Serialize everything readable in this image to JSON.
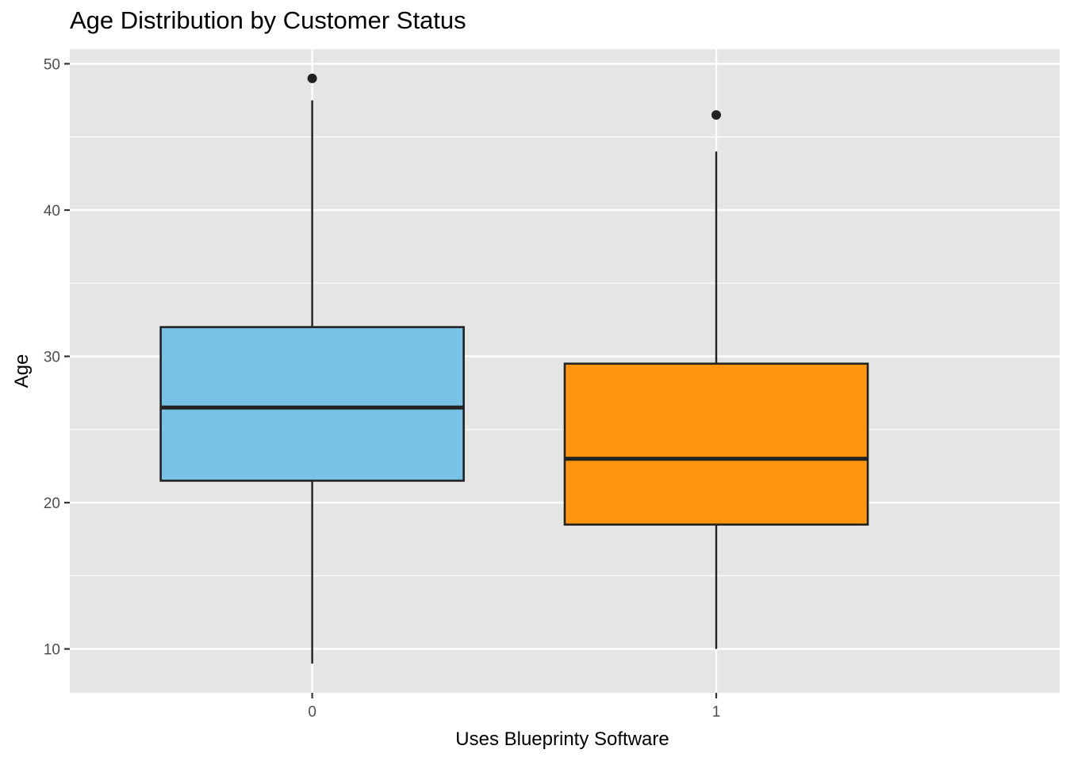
{
  "chart_data": {
    "type": "boxplot",
    "title": "Age Distribution by Customer Status",
    "xlabel": "Uses Blueprinty Software",
    "ylabel": "Age",
    "categories": [
      "0",
      "1"
    ],
    "ylim": [
      7,
      51
    ],
    "yticks": [
      10,
      20,
      30,
      40,
      50
    ],
    "grid": true,
    "legend": "none",
    "boxes": [
      {
        "category": "0",
        "whisker_low": 9,
        "q1": 21.5,
        "median": 26.5,
        "q3": 32,
        "whisker_high": 47.5,
        "outliers": [
          49
        ],
        "fill": "#77c2e5"
      },
      {
        "category": "1",
        "whisker_low": 10,
        "q1": 18.5,
        "median": 23,
        "q3": 29.5,
        "whisker_high": 44,
        "outliers": [
          46.5
        ],
        "fill": "#ff950e"
      }
    ]
  },
  "colors": {
    "panel": "#e5e5e5",
    "grid": "#ffffff",
    "box_outline": "#222222",
    "outlier": "#222222"
  }
}
